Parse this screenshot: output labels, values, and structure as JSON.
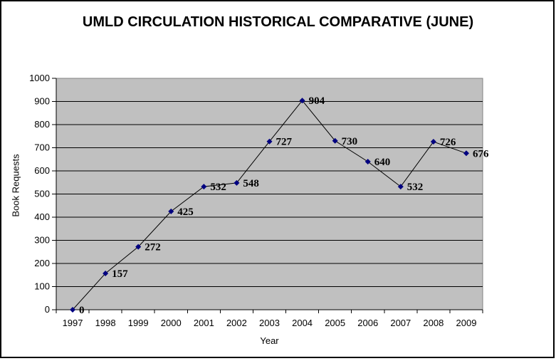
{
  "page": {
    "background_color": "#ffffff",
    "frame_border_color": "#000000"
  },
  "chart_data": {
    "type": "line",
    "title": "UMLD CIRCULATION HISTORICAL COMPARATIVE (JUNE)",
    "xlabel": "Year",
    "ylabel": "Book Requests",
    "categories": [
      "1997",
      "1998",
      "1999",
      "2000",
      "2001",
      "2002",
      "2003",
      "2004",
      "2005",
      "2006",
      "2007",
      "2008",
      "2009"
    ],
    "values": [
      0,
      157,
      272,
      425,
      532,
      548,
      727,
      904,
      730,
      640,
      532,
      726,
      676
    ],
    "ylim": [
      0,
      1000
    ],
    "ytick_step": 100,
    "grid": "horizontal",
    "legend": "none",
    "data_labels_shown": true,
    "marker_shape": "diamond",
    "colors": {
      "marker": "#000080",
      "line": "#000000",
      "plot_background": "#c0c0c0",
      "plot_border": "#808080",
      "gridline": "#000000",
      "axis": "#000000",
      "text": "#000000"
    }
  }
}
